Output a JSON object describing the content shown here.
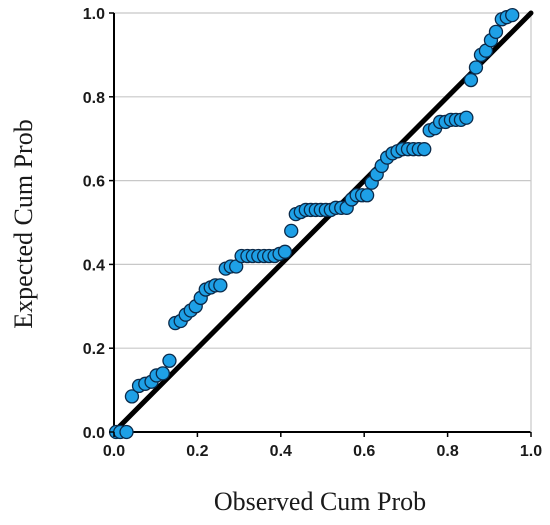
{
  "chart_data": {
    "type": "scatter",
    "xlabel": "Observed Cum Prob",
    "ylabel": "Expected Cum Prob",
    "xlim": [
      0,
      1
    ],
    "ylim": [
      0,
      1
    ],
    "xticks": [
      0.0,
      0.2,
      0.4,
      0.6,
      0.8,
      1.0
    ],
    "yticks": [
      0.0,
      0.2,
      0.4,
      0.6,
      0.8,
      1.0
    ],
    "xtick_labels": [
      "0.0",
      "0.2",
      "0.4",
      "0.6",
      "0.8",
      "1.0"
    ],
    "ytick_labels": [
      "0.0",
      "0.2",
      "0.4",
      "0.6",
      "0.8",
      "1.0"
    ],
    "grid": "horizontal",
    "reference_line": {
      "from": [
        0,
        0
      ],
      "to": [
        1,
        1
      ],
      "color": "#000000"
    },
    "point_color": "#1ea0e6",
    "point_edge_color": "#0a2a4a",
    "points": [
      [
        0.005,
        0.0
      ],
      [
        0.015,
        0.0
      ],
      [
        0.03,
        0.0
      ],
      [
        0.043,
        0.085
      ],
      [
        0.06,
        0.11
      ],
      [
        0.075,
        0.115
      ],
      [
        0.09,
        0.12
      ],
      [
        0.102,
        0.135
      ],
      [
        0.117,
        0.14
      ],
      [
        0.133,
        0.17
      ],
      [
        0.147,
        0.26
      ],
      [
        0.16,
        0.265
      ],
      [
        0.172,
        0.28
      ],
      [
        0.184,
        0.29
      ],
      [
        0.196,
        0.3
      ],
      [
        0.208,
        0.32
      ],
      [
        0.22,
        0.34
      ],
      [
        0.232,
        0.345
      ],
      [
        0.243,
        0.35
      ],
      [
        0.255,
        0.35
      ],
      [
        0.268,
        0.39
      ],
      [
        0.28,
        0.395
      ],
      [
        0.293,
        0.395
      ],
      [
        0.306,
        0.42
      ],
      [
        0.32,
        0.42
      ],
      [
        0.333,
        0.42
      ],
      [
        0.346,
        0.42
      ],
      [
        0.36,
        0.42
      ],
      [
        0.372,
        0.42
      ],
      [
        0.385,
        0.42
      ],
      [
        0.397,
        0.425
      ],
      [
        0.41,
        0.43
      ],
      [
        0.425,
        0.48
      ],
      [
        0.436,
        0.52
      ],
      [
        0.448,
        0.525
      ],
      [
        0.46,
        0.53
      ],
      [
        0.472,
        0.53
      ],
      [
        0.484,
        0.53
      ],
      [
        0.496,
        0.53
      ],
      [
        0.508,
        0.53
      ],
      [
        0.52,
        0.53
      ],
      [
        0.532,
        0.535
      ],
      [
        0.545,
        0.535
      ],
      [
        0.558,
        0.535
      ],
      [
        0.57,
        0.555
      ],
      [
        0.582,
        0.565
      ],
      [
        0.595,
        0.565
      ],
      [
        0.607,
        0.565
      ],
      [
        0.618,
        0.595
      ],
      [
        0.63,
        0.615
      ],
      [
        0.642,
        0.635
      ],
      [
        0.655,
        0.655
      ],
      [
        0.668,
        0.665
      ],
      [
        0.68,
        0.67
      ],
      [
        0.692,
        0.675
      ],
      [
        0.705,
        0.675
      ],
      [
        0.718,
        0.675
      ],
      [
        0.731,
        0.675
      ],
      [
        0.744,
        0.675
      ],
      [
        0.757,
        0.72
      ],
      [
        0.77,
        0.725
      ],
      [
        0.782,
        0.74
      ],
      [
        0.795,
        0.74
      ],
      [
        0.808,
        0.745
      ],
      [
        0.82,
        0.745
      ],
      [
        0.832,
        0.745
      ],
      [
        0.845,
        0.75
      ],
      [
        0.856,
        0.84
      ],
      [
        0.868,
        0.87
      ],
      [
        0.88,
        0.9
      ],
      [
        0.892,
        0.91
      ],
      [
        0.904,
        0.935
      ],
      [
        0.916,
        0.955
      ],
      [
        0.93,
        0.985
      ],
      [
        0.942,
        0.99
      ],
      [
        0.955,
        0.995
      ]
    ]
  }
}
